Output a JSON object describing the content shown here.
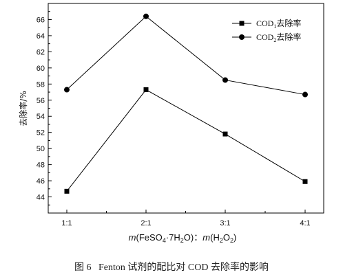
{
  "chart_data": {
    "type": "line",
    "categories": [
      "1:1",
      "2:1",
      "3:1",
      "4:1"
    ],
    "series": [
      {
        "name": "COD1去除率",
        "name_main": "COD",
        "name_sub": "1",
        "name_suffix": "去除率",
        "marker": "square",
        "values": [
          44.7,
          57.3,
          51.8,
          45.9
        ]
      },
      {
        "name": "COD2去除率",
        "name_main": "COD",
        "name_sub": "2",
        "name_suffix": "去除率",
        "marker": "circle",
        "values": [
          57.3,
          66.4,
          58.5,
          56.7
        ]
      }
    ],
    "ylabel": "去除率/%",
    "ylim": [
      42,
      68
    ],
    "yticks": [
      44,
      46,
      48,
      50,
      52,
      54,
      56,
      58,
      60,
      62,
      64,
      66
    ],
    "legend_position": "top-right",
    "grid": false
  },
  "xlabel": {
    "m1": "m",
    "p1": "(FeSO",
    "sub1": "4",
    "p2": "·7H",
    "sub2": "2",
    "p3": "O)",
    "sep": "：",
    "m2": "m",
    "p4": "(H",
    "sub3": "2",
    "p5": "O",
    "sub4": "2",
    "p6": ")"
  },
  "caption": "图 6   Fenton 试剂的配比对 COD 去除率的影响"
}
